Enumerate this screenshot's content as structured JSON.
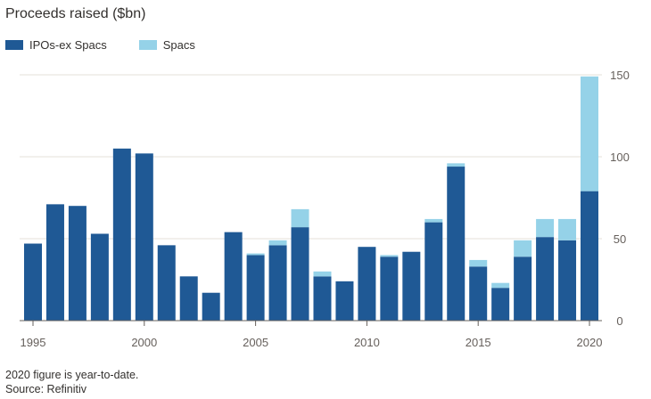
{
  "chart_data": {
    "type": "bar",
    "stacked": true,
    "title": "Proceeds raised ($bn)",
    "xlabel": "",
    "ylabel": "",
    "ylim": [
      0,
      150
    ],
    "yticks": [
      0,
      50,
      100,
      150
    ],
    "y_axis_side": "right",
    "grid": true,
    "legend_position": "top-left",
    "categories": [
      1995,
      1996,
      1997,
      1998,
      1999,
      2000,
      2001,
      2002,
      2003,
      2004,
      2005,
      2006,
      2007,
      2008,
      2009,
      2010,
      2011,
      2012,
      2013,
      2014,
      2015,
      2016,
      2017,
      2018,
      2019,
      2020
    ],
    "xtick_labels": [
      "1995",
      "2000",
      "2005",
      "2010",
      "2015",
      "2020"
    ],
    "series": [
      {
        "name": "IPOs-ex Spacs",
        "color": "#1f5995",
        "values": [
          47,
          71,
          70,
          53,
          105,
          102,
          46,
          27,
          17,
          54,
          40,
          46,
          57,
          27,
          24,
          45,
          39,
          42,
          60,
          94,
          33,
          20,
          39,
          51,
          49,
          79
        ]
      },
      {
        "name": "Spacs",
        "color": "#95d2e8",
        "values": [
          0,
          0,
          0,
          0,
          0,
          0,
          0,
          0,
          0,
          0,
          1,
          3,
          11,
          3,
          0,
          0,
          1,
          0,
          2,
          2,
          4,
          3,
          10,
          11,
          13,
          70
        ]
      }
    ]
  },
  "footnote": {
    "line1": "2020 figure is year-to-date.",
    "line2": "Source: Refinitiv"
  }
}
